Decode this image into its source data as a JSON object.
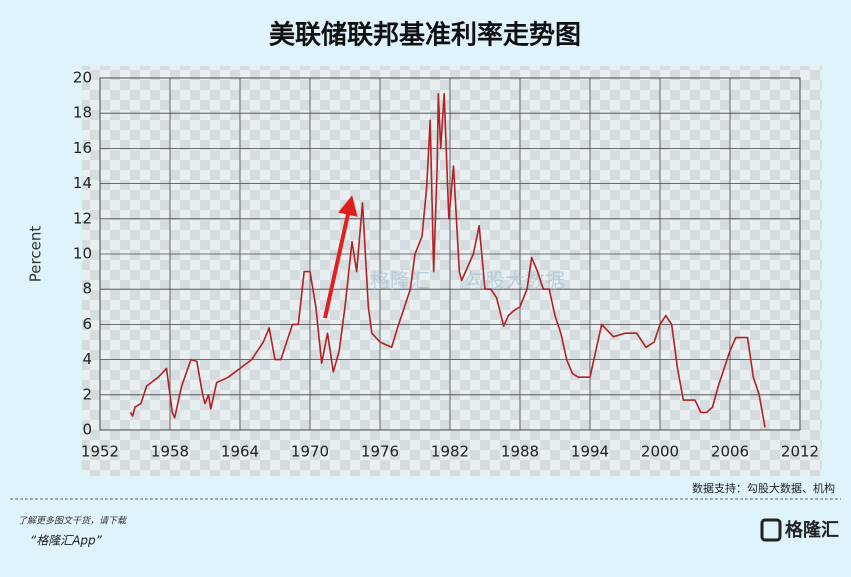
{
  "chart_data": {
    "type": "line",
    "title": "美联储联邦基准利率走势图",
    "y_label": "Percent",
    "source": "数据支持：勾股大数据、机构",
    "watermarks": [
      "格隆汇",
      "勾股大数据"
    ],
    "color": "#b22222",
    "grid": true,
    "xlim": [
      1952,
      2012
    ],
    "xticks": [
      1952,
      1958,
      1964,
      1970,
      1976,
      1982,
      1988,
      1994,
      2000,
      2006,
      2012
    ],
    "ylim": [
      0,
      20
    ],
    "yticks": [
      0,
      2,
      4,
      6,
      8,
      10,
      12,
      14,
      16,
      18,
      20
    ],
    "x": [
      1954.6,
      1954.8,
      1955,
      1955.5,
      1956,
      1957,
      1957.7,
      1958.2,
      1958.4,
      1959,
      1959.8,
      1960.3,
      1960.8,
      1961,
      1961.3,
      1961.5,
      1962,
      1963,
      1964,
      1965,
      1966,
      1966.5,
      1967,
      1967.5,
      1968,
      1968.5,
      1969,
      1969.5,
      1970,
      1970.5,
      1971,
      1971.5,
      1972,
      1972.5,
      1973,
      1973.6,
      1974,
      1974.5,
      1975,
      1975.3,
      1976,
      1977,
      1977.5,
      1978,
      1978.6,
      1979,
      1979.6,
      1980,
      1980.3,
      1980.6,
      1980.9,
      1981,
      1981.2,
      1981.5,
      1981.9,
      1982.3,
      1982.8,
      1983,
      1984,
      1984.5,
      1985,
      1985.5,
      1986,
      1986.6,
      1987,
      1987.5,
      1988,
      1988.6,
      1989,
      1989.5,
      1990,
      1990.5,
      1991,
      1991.5,
      1992,
      1992.5,
      1993,
      1994,
      1994.5,
      1995,
      1996,
      1997,
      1998,
      1998.8,
      1999.5,
      2000,
      2000.5,
      2001,
      2001.5,
      2002,
      2003,
      2003.5,
      2004,
      2004.5,
      2005,
      2006,
      2006.5,
      2007.5,
      2008,
      2008.5,
      2009
    ],
    "values": [
      1.0,
      0.8,
      1.3,
      1.5,
      2.5,
      3.0,
      3.5,
      1.0,
      0.7,
      2.5,
      4.0,
      3.9,
      2.0,
      1.5,
      2.0,
      1.2,
      2.7,
      3.0,
      3.5,
      4.0,
      5.0,
      5.8,
      4.0,
      4.0,
      5.0,
      6.0,
      6.0,
      9.0,
      9.0,
      7.0,
      3.8,
      5.5,
      3.3,
      4.5,
      7.0,
      10.7,
      9.0,
      12.9,
      7.0,
      5.5,
      5.0,
      4.7,
      5.8,
      6.8,
      8.0,
      10.0,
      11.0,
      13.8,
      17.6,
      9.0,
      15.0,
      19.1,
      16.0,
      19.1,
      12.0,
      15.0,
      9.0,
      8.5,
      10.0,
      11.6,
      8.0,
      8.0,
      7.5,
      5.9,
      6.5,
      6.8,
      7.0,
      8.0,
      9.8,
      9.0,
      8.0,
      8.0,
      6.5,
      5.5,
      4.0,
      3.2,
      3.0,
      3.0,
      4.5,
      6.0,
      5.3,
      5.5,
      5.5,
      4.7,
      5.0,
      6.0,
      6.5,
      6.0,
      3.5,
      1.7,
      1.7,
      1.0,
      1.0,
      1.3,
      2.5,
      4.5,
      5.25,
      5.25,
      3.0,
      2.0,
      0.15
    ]
  },
  "footer": {
    "line1": "了解更多图文干货，请下载",
    "line2": "“格隆汇App”"
  },
  "logo": "格隆汇"
}
